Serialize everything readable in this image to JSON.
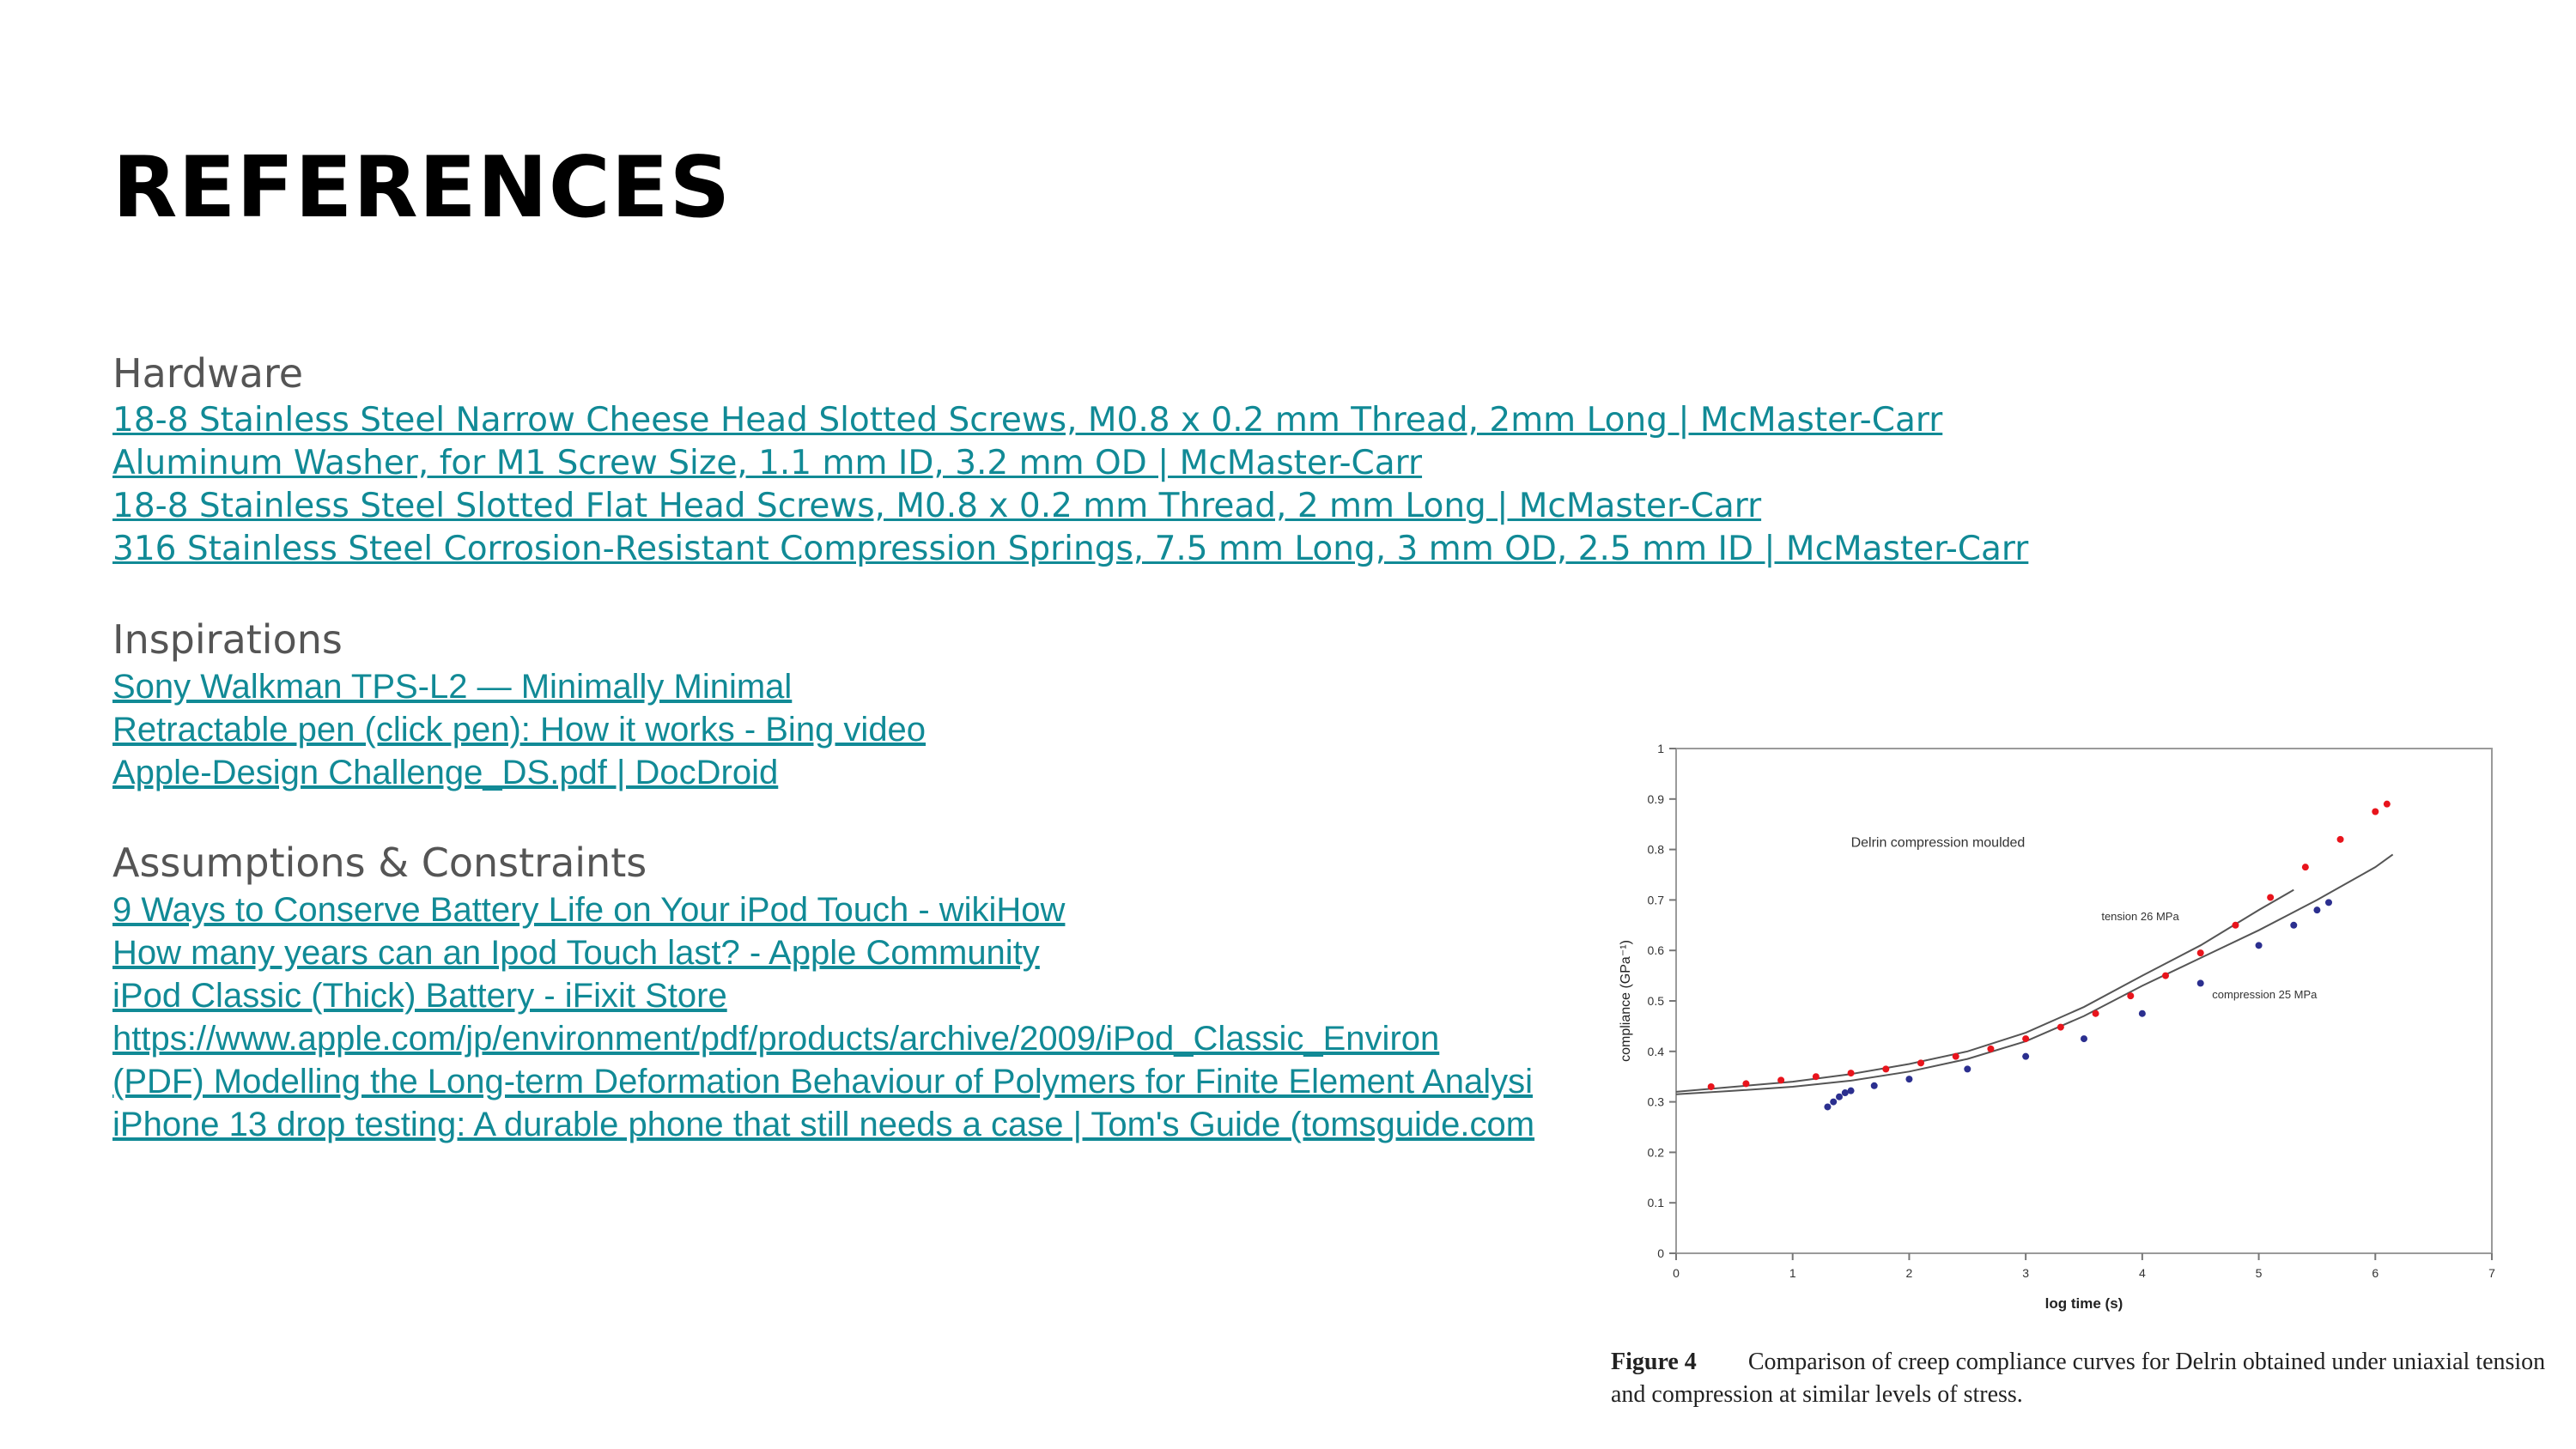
{
  "slide": {
    "title": "REFERENCES"
  },
  "sections": [
    {
      "heading": "Hardware",
      "font": "sans",
      "links": [
        "18-8 Stainless Steel Narrow Cheese Head Slotted Screws, M0.8 x 0.2 mm Thread, 2mm Long | McMaster-Carr",
        "Aluminum Washer, for M1 Screw Size, 1.1 mm ID, 3.2 mm OD | McMaster-Carr",
        "18-8 Stainless Steel Slotted Flat Head Screws, M0.8 x 0.2 mm Thread, 2 mm Long | McMaster-Carr",
        "316 Stainless Steel Corrosion-Resistant Compression Springs, 7.5 mm Long, 3 mm OD, 2.5 mm ID | McMaster-Carr"
      ]
    },
    {
      "heading": "Inspirations",
      "font": "arial",
      "links": [
        "Sony Walkman TPS-L2 — Minimally Minimal",
        "Retractable pen (click pen): How it works - Bing video",
        "Apple-Design Challenge_DS.pdf | DocDroid"
      ]
    },
    {
      "heading": "Assumptions & Constraints",
      "font": "arial",
      "links": [
        "9 Ways to Conserve Battery Life on Your iPod Touch - wikiHow",
        "How many years can an Ipod Touch last? - Apple Community",
        "iPod Classic (Thick) Battery - iFixit Store",
        "https://www.apple.com/jp/environment/pdf/products/archive/2009/iPod_Classic_Environ",
        "(PDF) Modelling the Long-term Deformation Behaviour of Polymers for Finite Element Analysi",
        "iPhone 13 drop testing: A durable phone that still needs a case | Tom's Guide (tomsguide.com"
      ]
    }
  ],
  "figure": {
    "caption_label": "Figure 4",
    "caption_text": "Comparison of creep compliance curves for Delrin obtained under uniaxial tension and compression at similar levels of stress."
  },
  "chart_data": {
    "type": "line",
    "title": "Delrin compression moulded",
    "xlabel": "log time (s)",
    "ylabel": "compliance (GPa⁻¹)",
    "xlim": [
      0,
      7
    ],
    "ylim": [
      0,
      1
    ],
    "xticks": [
      "0",
      "1",
      "2",
      "3",
      "4",
      "5",
      "6",
      "7"
    ],
    "yticks": [
      "0",
      "0.1",
      "0.2",
      "0.3",
      "0.4",
      "0.5",
      "0.6",
      "0.7",
      "0.8",
      "0.9",
      "1"
    ],
    "grid": false,
    "series": [
      {
        "name": "tension 26 MPa",
        "kind": "data",
        "color": "#e8141c",
        "x": [
          0.3,
          0.6,
          0.9,
          1.2,
          1.5,
          1.8,
          2.1,
          2.4,
          2.7,
          3.0,
          3.3,
          3.6,
          3.9,
          4.2,
          4.5,
          4.8,
          5.1,
          5.4,
          5.7,
          6.0,
          6.1
        ],
        "y": [
          0.33,
          0.336,
          0.343,
          0.35,
          0.357,
          0.365,
          0.377,
          0.39,
          0.405,
          0.425,
          0.448,
          0.475,
          0.51,
          0.55,
          0.595,
          0.65,
          0.705,
          0.765,
          0.82,
          0.875,
          0.89
        ]
      },
      {
        "name": "compression 25 MPa",
        "kind": "data",
        "color": "#2b2f8f",
        "x": [
          1.3,
          1.35,
          1.4,
          1.45,
          1.5,
          1.7,
          2.0,
          2.5,
          3.0,
          3.5,
          4.0,
          4.5,
          5.0,
          5.3,
          5.5,
          5.6
        ],
        "y": [
          0.29,
          0.3,
          0.31,
          0.318,
          0.322,
          0.332,
          0.345,
          0.365,
          0.39,
          0.425,
          0.475,
          0.535,
          0.61,
          0.65,
          0.68,
          0.695
        ]
      },
      {
        "kind": "fit",
        "color": "#555555",
        "x": [
          0,
          0.5,
          1.0,
          1.5,
          2.0,
          2.5,
          3.0,
          3.5,
          4.0,
          4.5,
          5.0,
          5.5,
          6.0,
          6.15
        ],
        "y": [
          0.315,
          0.322,
          0.33,
          0.342,
          0.36,
          0.385,
          0.42,
          0.47,
          0.53,
          0.585,
          0.64,
          0.7,
          0.765,
          0.79
        ]
      },
      {
        "kind": "fit",
        "color": "#555555",
        "x": [
          0,
          0.5,
          1.0,
          1.5,
          2.0,
          2.5,
          3.0,
          3.5,
          4.0,
          4.5,
          5.0,
          5.3
        ],
        "y": [
          0.32,
          0.33,
          0.34,
          0.355,
          0.375,
          0.4,
          0.437,
          0.488,
          0.55,
          0.61,
          0.68,
          0.72
        ]
      }
    ],
    "annotations": [
      "tension 26 MPa",
      "compression 25 MPa"
    ]
  }
}
